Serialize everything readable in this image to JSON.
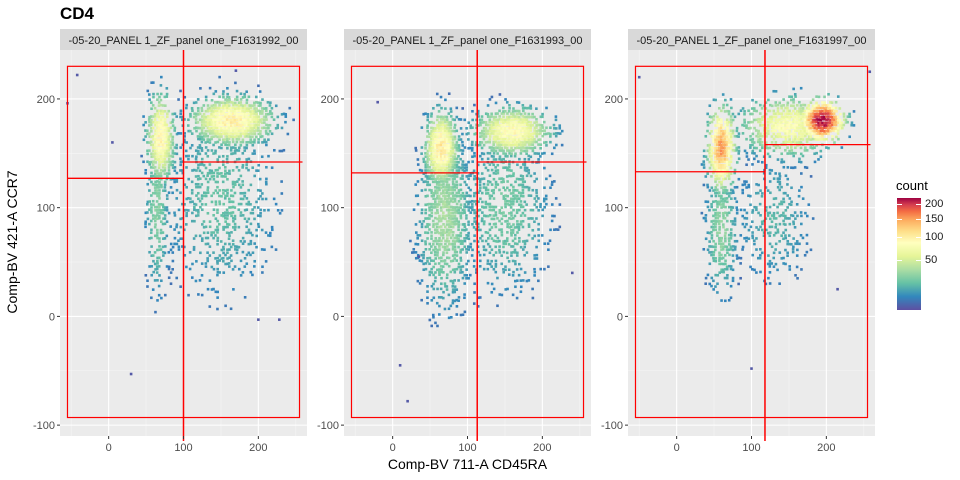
{
  "chart_data": {
    "type": "heatmap",
    "subtype": "hexbin density scatter, faceted",
    "title": "CD4",
    "xlabel": "Comp-BV 711-A CD45RA",
    "ylabel": "Comp-BV 421-A CCR7",
    "xlim": [
      -65,
      265
    ],
    "ylim": [
      -110,
      245
    ],
    "x_ticks": [
      0,
      100,
      200
    ],
    "y_ticks": [
      -100,
      0,
      100,
      200
    ],
    "grid": true,
    "legend": {
      "title": "count",
      "position": "right",
      "colormap": "Spectral (reversed)",
      "ticks": [
        50,
        100,
        150,
        200
      ],
      "max": 220
    },
    "panels": [
      {
        "strip": "-05-20_PANEL 1_ZF_panel one_F1631992_00",
        "gate_rect": {
          "x": [
            -55,
            255
          ],
          "y": [
            -93,
            230
          ]
        },
        "gate_vline_x": 100,
        "gate_left_y": 127,
        "gate_right_y": 142,
        "clusters": [
          {
            "x": 70,
            "y": 165,
            "sx": 10,
            "sy": 22,
            "weight": 0.7,
            "peak": 70
          },
          {
            "x": 165,
            "y": 180,
            "sx": 30,
            "sy": 12,
            "weight": 1.0,
            "peak": 75
          },
          {
            "x": 65,
            "y": 100,
            "sx": 9,
            "sy": 45,
            "weight": 0.3,
            "peak": 18
          },
          {
            "x": 150,
            "y": 110,
            "sx": 45,
            "sy": 55,
            "weight": 0.2,
            "peak": 12
          }
        ],
        "outliers": [
          [
            -42,
            222
          ],
          [
            -55,
            196
          ],
          [
            5,
            160
          ],
          [
            30,
            -53
          ],
          [
            200,
            -3
          ],
          [
            228,
            -3
          ],
          [
            170,
            226
          ]
        ]
      },
      {
        "strip": "-05-20_PANEL 1_ZF_panel one_F1631993_00",
        "gate_rect": {
          "x": [
            -55,
            255
          ],
          "y": [
            -93,
            230
          ]
        },
        "gate_vline_x": 113,
        "gate_left_y": 132,
        "gate_right_y": 142,
        "clusters": [
          {
            "x": 65,
            "y": 155,
            "sx": 12,
            "sy": 18,
            "weight": 1.0,
            "peak": 80
          },
          {
            "x": 160,
            "y": 170,
            "sx": 28,
            "sy": 12,
            "weight": 0.8,
            "peak": 65
          },
          {
            "x": 70,
            "y": 90,
            "sx": 20,
            "sy": 45,
            "weight": 0.5,
            "peak": 25
          },
          {
            "x": 150,
            "y": 100,
            "sx": 35,
            "sy": 45,
            "weight": 0.3,
            "peak": 15
          }
        ],
        "outliers": [
          [
            -20,
            197
          ],
          [
            10,
            -45
          ],
          [
            20,
            -78
          ],
          [
            35,
            55
          ],
          [
            240,
            40
          ]
        ]
      },
      {
        "strip": "-05-20_PANEL 1_ZF_panel one_F1631997_00",
        "gate_rect": {
          "x": [
            -55,
            255
          ],
          "y": [
            -93,
            230
          ]
        },
        "gate_vline_x": 118,
        "gate_left_y": 133,
        "gate_right_y": 158,
        "clusters": [
          {
            "x": 60,
            "y": 155,
            "sx": 10,
            "sy": 20,
            "weight": 0.9,
            "peak": 120
          },
          {
            "x": 195,
            "y": 180,
            "sx": 15,
            "sy": 10,
            "weight": 1.0,
            "peak": 210
          },
          {
            "x": 150,
            "y": 175,
            "sx": 35,
            "sy": 15,
            "weight": 0.6,
            "peak": 60
          },
          {
            "x": 60,
            "y": 80,
            "sx": 12,
            "sy": 35,
            "weight": 0.4,
            "peak": 20
          },
          {
            "x": 130,
            "y": 90,
            "sx": 30,
            "sy": 35,
            "weight": 0.2,
            "peak": 10
          }
        ],
        "outliers": [
          [
            -50,
            220
          ],
          [
            100,
            -48
          ],
          [
            258,
            225
          ],
          [
            215,
            25
          ]
        ]
      }
    ]
  }
}
